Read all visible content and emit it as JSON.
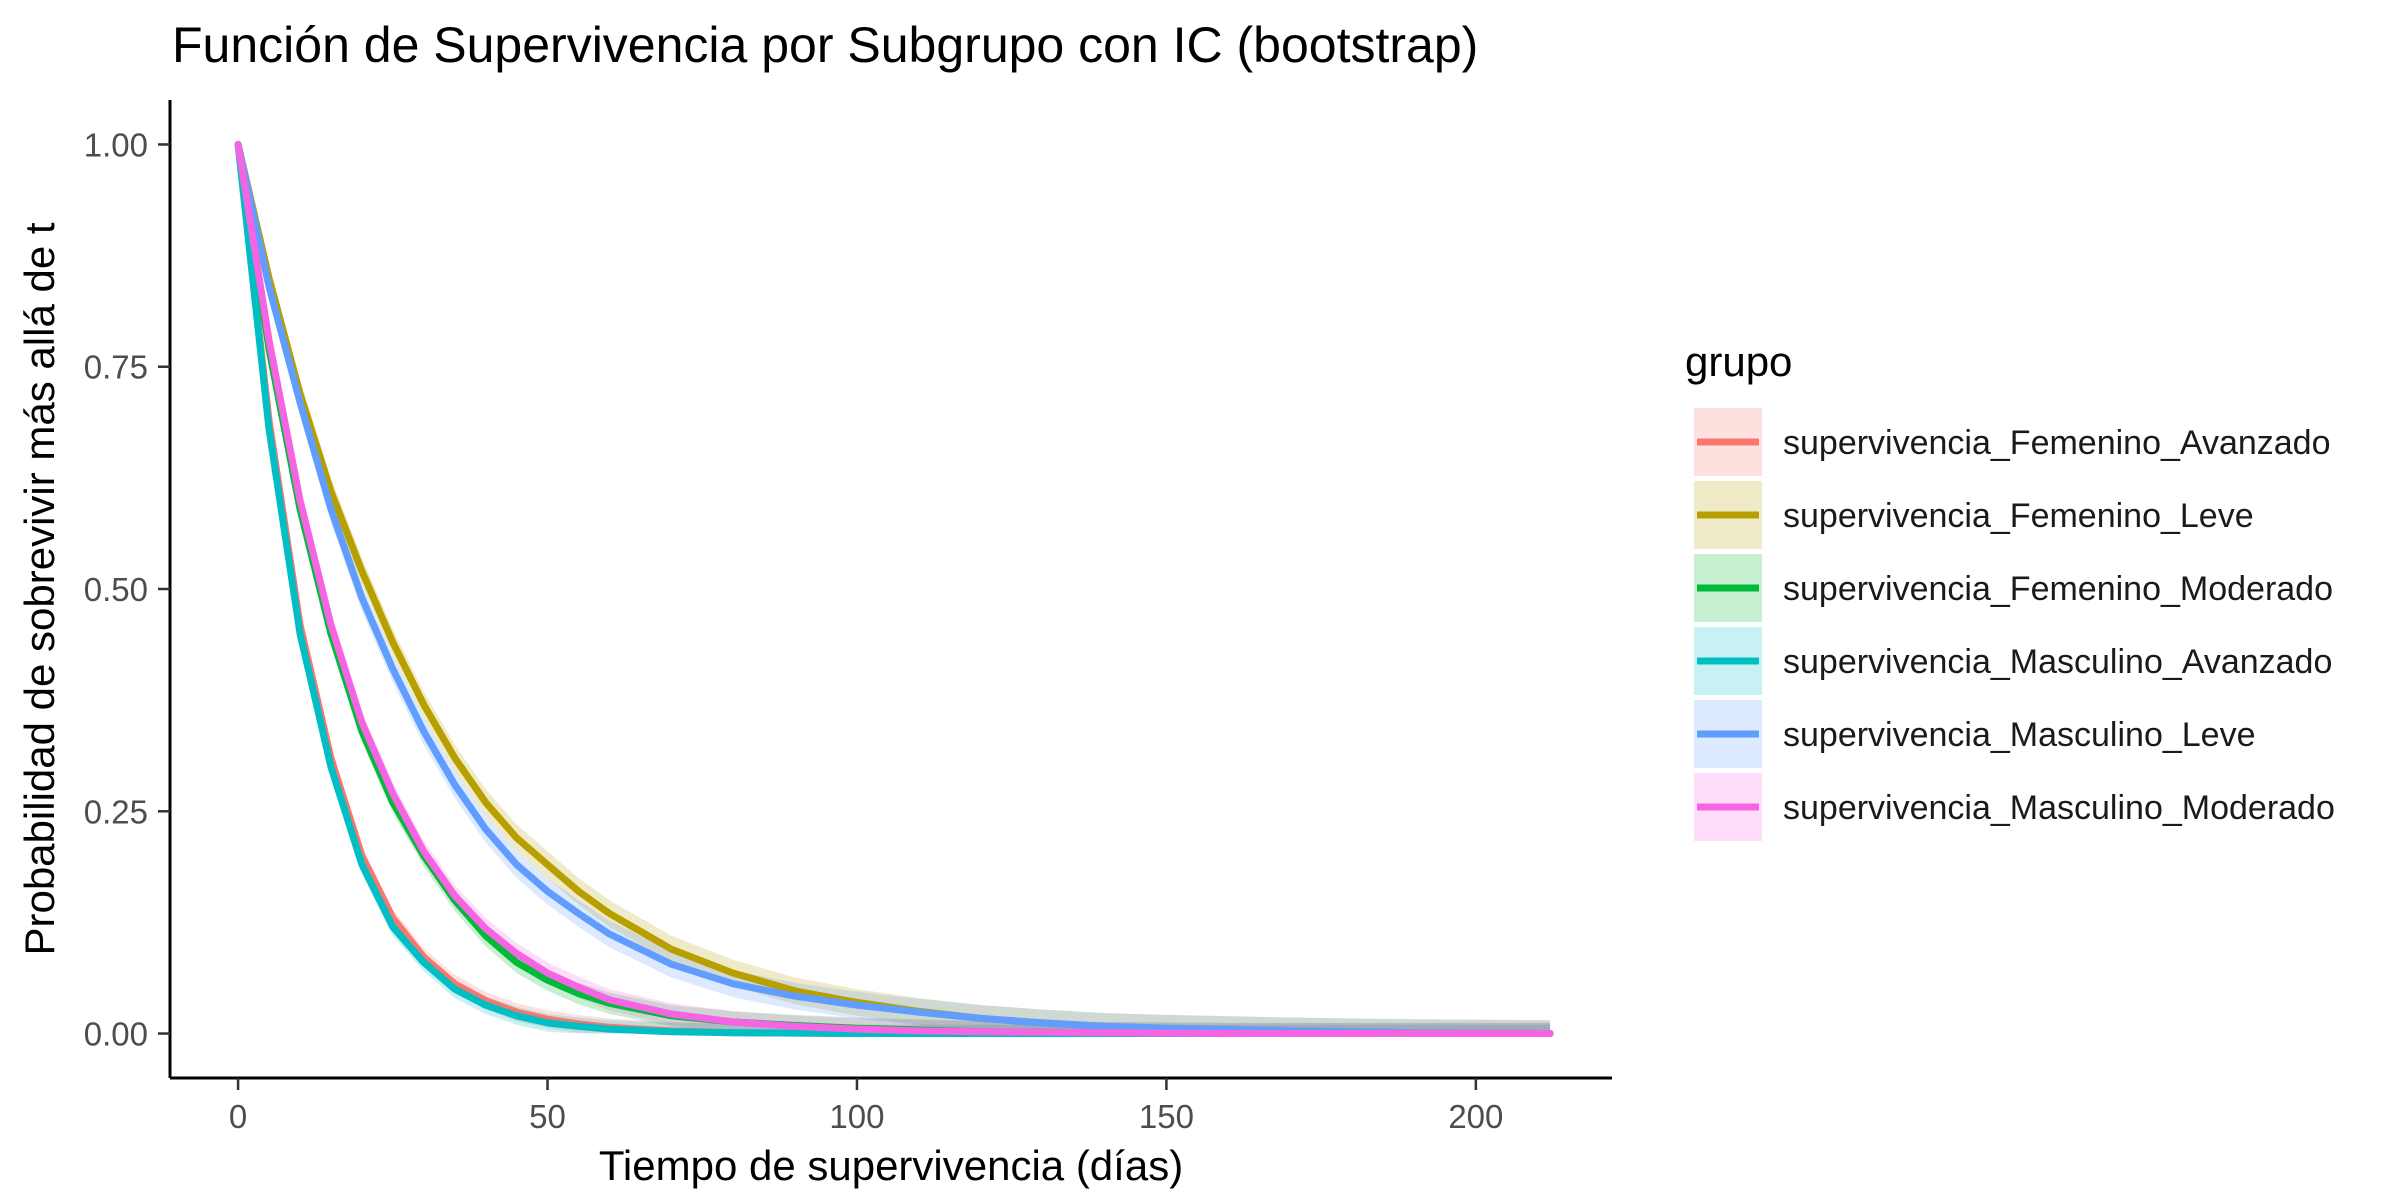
{
  "chart_data": {
    "type": "line",
    "title": "Función de Supervivencia por Subgrupo con IC (bootstrap)",
    "xlabel": "Tiempo de supervivencia (días)",
    "ylabel": "Probabilidad de sobrevivir más allá de t",
    "xlim": [
      -11,
      222
    ],
    "ylim": [
      -0.05,
      1.05
    ],
    "x_ticks": [
      0,
      50,
      100,
      150,
      200
    ],
    "x_tick_labels": [
      "0",
      "50",
      "100",
      "150",
      "200"
    ],
    "y_ticks": [
      0,
      0.25,
      0.5,
      0.75,
      1
    ],
    "y_tick_labels": [
      "0.00",
      "0.25",
      "0.50",
      "0.75",
      "1.00"
    ],
    "grid": false,
    "legend": {
      "title": "grupo",
      "position": "right"
    },
    "series": [
      {
        "name": "supervivencia_Femenino_Avanzado",
        "color": "#F8766D",
        "x": [
          0,
          5,
          10,
          15,
          20,
          25,
          30,
          35,
          40,
          45,
          50,
          55,
          60,
          70,
          80,
          100,
          150,
          212
        ],
        "values": [
          1.0,
          0.69,
          0.46,
          0.31,
          0.2,
          0.13,
          0.086,
          0.056,
          0.037,
          0.024,
          0.016,
          0.011,
          0.007,
          0.003,
          0.001,
          0.0,
          0.0,
          0.0
        ],
        "ci_halfwidth": 0.01
      },
      {
        "name": "supervivencia_Femenino_Leve",
        "color": "#B79F00",
        "x": [
          0,
          5,
          10,
          15,
          20,
          25,
          30,
          35,
          40,
          45,
          50,
          55,
          60,
          70,
          80,
          90,
          100,
          110,
          120,
          130,
          140,
          150,
          170,
          190,
          212
        ],
        "values": [
          1.0,
          0.85,
          0.72,
          0.61,
          0.52,
          0.44,
          0.37,
          0.31,
          0.26,
          0.22,
          0.19,
          0.16,
          0.135,
          0.095,
          0.068,
          0.048,
          0.035,
          0.025,
          0.017,
          0.012,
          0.008,
          0.006,
          0.003,
          0.001,
          0.0
        ],
        "ci_halfwidth": 0.015
      },
      {
        "name": "supervivencia_Femenino_Moderado",
        "color": "#00BA38",
        "x": [
          0,
          5,
          10,
          15,
          20,
          25,
          30,
          35,
          40,
          45,
          50,
          55,
          60,
          70,
          80,
          90,
          100,
          110,
          120,
          140,
          160,
          212
        ],
        "values": [
          1.0,
          0.77,
          0.59,
          0.45,
          0.34,
          0.26,
          0.2,
          0.15,
          0.11,
          0.08,
          0.06,
          0.045,
          0.034,
          0.02,
          0.013,
          0.009,
          0.006,
          0.004,
          0.002,
          0.001,
          0.0,
          0.0
        ],
        "ci_halfwidth": 0.012
      },
      {
        "name": "supervivencia_Masculino_Avanzado",
        "color": "#00BFC4",
        "x": [
          0,
          5,
          10,
          15,
          20,
          25,
          30,
          35,
          40,
          45,
          50,
          55,
          60,
          70,
          80,
          100,
          150,
          212
        ],
        "values": [
          1.0,
          0.68,
          0.45,
          0.3,
          0.19,
          0.12,
          0.08,
          0.05,
          0.032,
          0.02,
          0.012,
          0.008,
          0.005,
          0.002,
          0.001,
          0.0,
          0.0,
          0.0
        ],
        "ci_halfwidth": 0.01
      },
      {
        "name": "supervivencia_Masculino_Leve",
        "color": "#619CFF",
        "x": [
          0,
          5,
          10,
          15,
          20,
          25,
          30,
          35,
          40,
          45,
          50,
          55,
          60,
          70,
          80,
          90,
          100,
          110,
          120,
          130,
          140,
          150,
          170,
          190,
          212
        ],
        "values": [
          1.0,
          0.84,
          0.71,
          0.59,
          0.49,
          0.41,
          0.34,
          0.28,
          0.23,
          0.19,
          0.16,
          0.135,
          0.112,
          0.078,
          0.056,
          0.042,
          0.032,
          0.024,
          0.017,
          0.012,
          0.008,
          0.006,
          0.003,
          0.001,
          0.0
        ],
        "ci_halfwidth": 0.015
      },
      {
        "name": "supervivencia_Masculino_Moderado",
        "color": "#F564E3",
        "x": [
          0,
          5,
          10,
          15,
          20,
          25,
          30,
          35,
          40,
          45,
          50,
          55,
          60,
          70,
          80,
          90,
          100,
          110,
          120,
          140,
          160,
          212
        ],
        "values": [
          1.0,
          0.78,
          0.6,
          0.46,
          0.35,
          0.27,
          0.205,
          0.155,
          0.118,
          0.09,
          0.068,
          0.052,
          0.038,
          0.022,
          0.013,
          0.008,
          0.005,
          0.003,
          0.002,
          0.001,
          0.0,
          0.0
        ],
        "ci_halfwidth": 0.012
      }
    ]
  }
}
